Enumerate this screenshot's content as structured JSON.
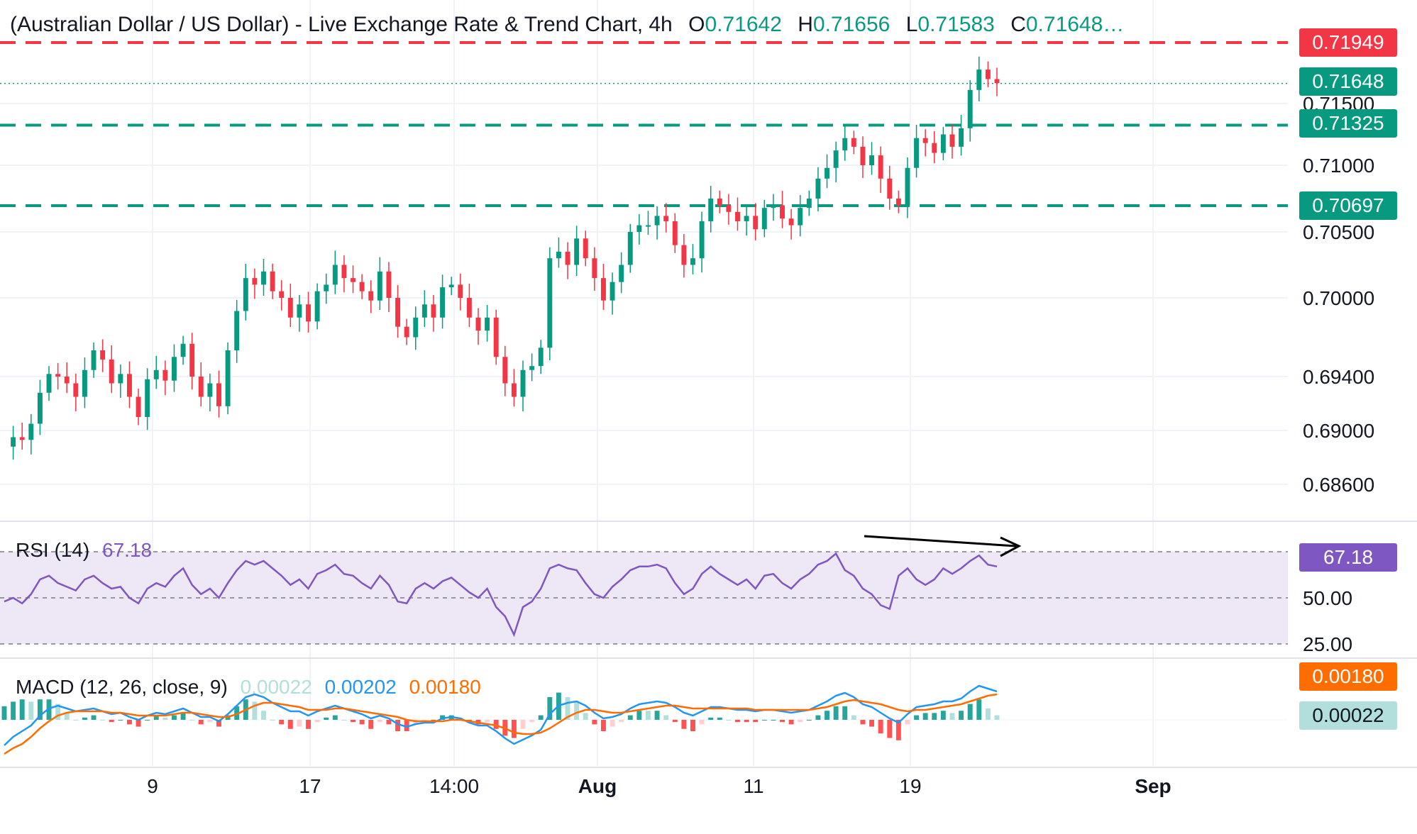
{
  "header": {
    "title": "(Australian Dollar / US Dollar) - Live Exchange Rate & Trend Chart, 4h",
    "open_label": "O",
    "open": "0.71642",
    "high_label": "H",
    "high": "0.71656",
    "low_label": "L",
    "low": "0.71583",
    "close_label": "C",
    "close": "0.71648…"
  },
  "colors": {
    "up": "#089981",
    "down": "#f23645",
    "rsi": "#7e57c2",
    "rsi_band": "#ede7f6",
    "macd": "#2196f3",
    "signal": "#ff6d00",
    "resistance": "#f23645",
    "support": "#089981"
  },
  "tags": {
    "resistance": "0.71949",
    "last": "0.71648",
    "support_upper": "0.71325",
    "support_lower": "0.70697",
    "rsi": "67.18",
    "signal": "0.00180",
    "hist": "0.00022"
  },
  "rsi_pane": {
    "label": "RSI (14)",
    "value": "67.18",
    "levels": [
      "75.00",
      "50.00",
      "25.00"
    ]
  },
  "macd_pane": {
    "label": "MACD (12, 26, close, 9)",
    "hist_value": "0.00022",
    "macd_value": "0.00202",
    "signal_value": "0.00180"
  },
  "chart_data": {
    "type": "candlestick",
    "symbol": "AUD/USD",
    "timeframe": "4h",
    "y_ticks": [
      0.686,
      0.69,
      0.694,
      0.7,
      0.705,
      0.71,
      0.715
    ],
    "y_tick_labels": [
      "0.68600",
      "0.69000",
      "0.69400",
      "0.70000",
      "0.70500",
      "0.71000",
      "0.71500"
    ],
    "x_tick_labels": [
      "9",
      "17",
      "14:00",
      "Aug",
      "11",
      "19",
      "Sep"
    ],
    "horizontal_levels": [
      {
        "value": 0.71949,
        "color": "red",
        "style": "dashed"
      },
      {
        "value": 0.71325,
        "color": "green",
        "style": "dashed"
      },
      {
        "value": 0.70697,
        "color": "green",
        "style": "dashed"
      },
      {
        "value": 0.71648,
        "color": "green",
        "style": "dotted"
      }
    ],
    "price_path": [
      0.6888,
      0.6895,
      0.6893,
      0.6905,
      0.6928,
      0.6942,
      0.694,
      0.6935,
      0.6925,
      0.6945,
      0.696,
      0.6953,
      0.6935,
      0.6942,
      0.6925,
      0.691,
      0.6938,
      0.6945,
      0.6937,
      0.6955,
      0.6965,
      0.694,
      0.6925,
      0.6935,
      0.6918,
      0.696,
      0.699,
      0.7015,
      0.701,
      0.702,
      0.7005,
      0.7,
      0.6985,
      0.6995,
      0.6982,
      0.7005,
      0.701,
      0.7025,
      0.7015,
      0.7012,
      0.7005,
      0.6998,
      0.702,
      0.7,
      0.6978,
      0.697,
      0.6985,
      0.6995,
      0.6985,
      0.7008,
      0.701,
      0.7,
      0.6985,
      0.6975,
      0.6985,
      0.6955,
      0.6935,
      0.6925,
      0.6945,
      0.6948,
      0.6962,
      0.703,
      0.7035,
      0.7025,
      0.7045,
      0.703,
      0.7015,
      0.6998,
      0.7012,
      0.7025,
      0.705,
      0.7055,
      0.7055,
      0.7062,
      0.7058,
      0.704,
      0.7025,
      0.703,
      0.7058,
      0.7075,
      0.707,
      0.7065,
      0.7058,
      0.7062,
      0.7052,
      0.7068,
      0.707,
      0.706,
      0.7055,
      0.7068,
      0.7075,
      0.709,
      0.7098,
      0.7112,
      0.7122,
      0.7115,
      0.71,
      0.7108,
      0.709,
      0.7075,
      0.707,
      0.7098,
      0.7122,
      0.7118,
      0.711,
      0.7125,
      0.7115,
      0.713,
      0.716,
      0.7175,
      0.7168,
      0.7165
    ],
    "rsi_path": [
      48,
      50,
      47,
      52,
      60,
      62,
      58,
      56,
      54,
      60,
      62,
      58,
      55,
      56,
      50,
      47,
      55,
      58,
      56,
      62,
      66,
      57,
      52,
      55,
      50,
      58,
      65,
      70,
      68,
      70,
      66,
      62,
      57,
      60,
      55,
      63,
      65,
      68,
      63,
      62,
      58,
      55,
      62,
      57,
      48,
      47,
      55,
      58,
      55,
      59,
      61,
      57,
      53,
      50,
      55,
      45,
      40,
      30,
      45,
      48,
      55,
      66,
      68,
      66,
      65,
      58,
      52,
      50,
      56,
      60,
      65,
      67,
      67,
      68,
      66,
      58,
      52,
      55,
      63,
      67,
      63,
      60,
      57,
      60,
      55,
      62,
      63,
      58,
      55,
      60,
      63,
      68,
      70,
      74,
      65,
      62,
      55,
      52,
      46,
      44,
      62,
      66,
      60,
      57,
      60,
      66,
      63,
      66,
      70,
      73,
      68,
      67
    ],
    "macd_path": [
      -0.0018,
      -0.0012,
      -0.0008,
      -0.0004,
      0.0003,
      0.0008,
      0.001,
      0.0008,
      0.0006,
      0.0007,
      0.0008,
      0.0006,
      0.0004,
      0.0005,
      0.0002,
      0.0,
      0.0003,
      0.0005,
      0.0004,
      0.0006,
      0.0008,
      0.0005,
      0.0002,
      0.0002,
      -0.0001,
      0.0004,
      0.001,
      0.0016,
      0.0018,
      0.0016,
      0.0012,
      0.0009,
      0.0006,
      0.0006,
      0.0003,
      0.0006,
      0.0008,
      0.001,
      0.0008,
      0.0006,
      0.0004,
      0.0001,
      0.0003,
      0.0001,
      -0.0003,
      -0.0005,
      -0.0003,
      -0.0002,
      -0.0002,
      0.0001,
      0.0002,
      0.0001,
      -0.0002,
      -0.0004,
      -0.0004,
      -0.0008,
      -0.0013,
      -0.0017,
      -0.0014,
      -0.0011,
      -0.0007,
      0.0004,
      0.001,
      0.0012,
      0.0013,
      0.001,
      0.0005,
      0.0001,
      0.0002,
      0.0004,
      0.0008,
      0.0011,
      0.0012,
      0.0013,
      0.0012,
      0.0009,
      0.0005,
      0.0003,
      0.0006,
      0.0009,
      0.0009,
      0.0008,
      0.0007,
      0.0007,
      0.0006,
      0.0007,
      0.0007,
      0.0006,
      0.0005,
      0.0006,
      0.0007,
      0.001,
      0.0013,
      0.0017,
      0.0019,
      0.0016,
      0.0011,
      0.0009,
      0.0005,
      0.0001,
      -0.0002,
      0.0004,
      0.0009,
      0.001,
      0.0011,
      0.0013,
      0.0013,
      0.0015,
      0.002,
      0.0024,
      0.0022,
      0.002
    ],
    "signal_path": [
      -0.0024,
      -0.002,
      -0.0017,
      -0.0012,
      -0.0006,
      -0.0001,
      0.0003,
      0.0005,
      0.0006,
      0.0006,
      0.0006,
      0.0006,
      0.0005,
      0.0005,
      0.0004,
      0.0003,
      0.0003,
      0.0003,
      0.0003,
      0.0004,
      0.0005,
      0.0005,
      0.0004,
      0.0003,
      0.0002,
      0.0002,
      0.0004,
      0.0007,
      0.001,
      0.0012,
      0.0012,
      0.0011,
      0.001,
      0.0009,
      0.0007,
      0.0007,
      0.0007,
      0.0008,
      0.0008,
      0.0007,
      0.0006,
      0.0005,
      0.0004,
      0.0003,
      0.0002,
      0.0,
      -0.0001,
      -0.0001,
      -0.0001,
      -0.0001,
      0.0,
      0.0,
      -0.0001,
      -0.0002,
      -0.0003,
      -0.0004,
      -0.0006,
      -0.0009,
      -0.001,
      -0.001,
      -0.0009,
      -0.0006,
      -0.0002,
      0.0002,
      0.0005,
      0.0007,
      0.0007,
      0.0006,
      0.0005,
      0.0005,
      0.0006,
      0.0007,
      0.0008,
      0.0009,
      0.001,
      0.001,
      0.0009,
      0.0008,
      0.0008,
      0.0008,
      0.0008,
      0.0008,
      0.0008,
      0.0008,
      0.0007,
      0.0007,
      0.0007,
      0.0007,
      0.0007,
      0.0007,
      0.0007,
      0.0008,
      0.0009,
      0.0011,
      0.0013,
      0.0014,
      0.0013,
      0.0012,
      0.0011,
      0.0009,
      0.0007,
      0.0006,
      0.0007,
      0.0007,
      0.0008,
      0.0009,
      0.001,
      0.0011,
      0.0013,
      0.0015,
      0.0017,
      0.0018
    ]
  }
}
